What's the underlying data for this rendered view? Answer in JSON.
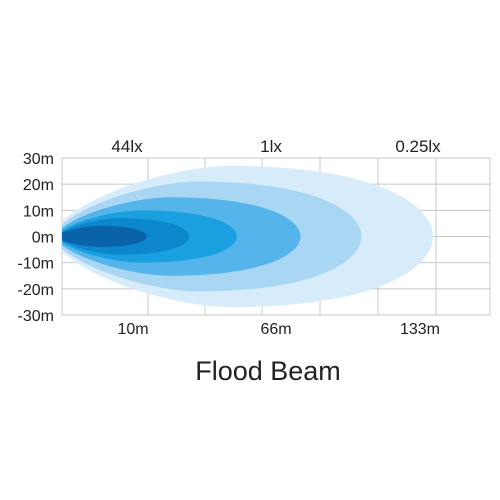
{
  "chart_data": {
    "type": "area",
    "title": "Flood Beam",
    "y_ticks": [
      "30m",
      "20m",
      "10m",
      "0m",
      "-10m",
      "-20m",
      "-30m"
    ],
    "x_ticks": [
      "10m",
      "66m",
      "133m"
    ],
    "lux_labels": [
      "44lx",
      "1lx",
      "0.25lx"
    ],
    "grid": true,
    "series": [
      {
        "reach_m": 140,
        "half_width_m": 27,
        "color": "#d7ecfa"
      },
      {
        "reach_m": 113,
        "half_width_m": 21,
        "color": "#a9d6f3"
      },
      {
        "reach_m": 90,
        "half_width_m": 15,
        "color": "#55b4ea"
      },
      {
        "reach_m": 66,
        "half_width_m": 10,
        "color": "#1aa0e0"
      },
      {
        "reach_m": 48,
        "half_width_m": 7,
        "color": "#0c86cc"
      },
      {
        "reach_m": 32,
        "half_width_m": 4,
        "color": "#0a63a8"
      }
    ]
  }
}
